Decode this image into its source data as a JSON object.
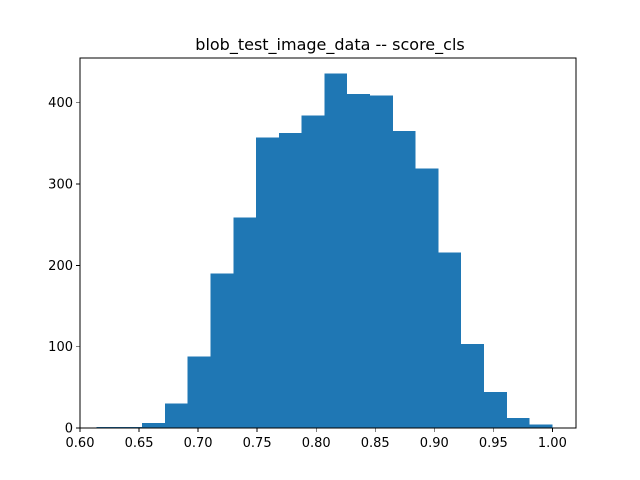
{
  "chart_data": {
    "type": "bar",
    "title": "blob_test_image_data -- score_cls",
    "xlabel": "",
    "ylabel": "",
    "xlim": [
      0.6,
      1.02
    ],
    "ylim": [
      0,
      455
    ],
    "grid": false,
    "bar_color": "#1f77b4",
    "bin_edges": [
      0.614,
      0.6333,
      0.6526,
      0.6719,
      0.6912,
      0.7105,
      0.7298,
      0.7491,
      0.7684,
      0.7877,
      0.807,
      0.8263,
      0.8456,
      0.8649,
      0.8842,
      0.9035,
      0.9228,
      0.9421,
      0.9614,
      0.9807,
      1.0
    ],
    "counts": [
      1,
      1,
      6,
      30,
      88,
      190,
      259,
      357,
      363,
      384,
      436,
      411,
      409,
      365,
      319,
      216,
      103,
      44,
      12,
      4
    ],
    "x_ticks": [
      {
        "value": 0.6,
        "label": "0.60"
      },
      {
        "value": 0.65,
        "label": "0.65"
      },
      {
        "value": 0.7,
        "label": "0.70"
      },
      {
        "value": 0.75,
        "label": "0.75"
      },
      {
        "value": 0.8,
        "label": "0.80"
      },
      {
        "value": 0.85,
        "label": "0.85"
      },
      {
        "value": 0.9,
        "label": "0.90"
      },
      {
        "value": 0.95,
        "label": "0.95"
      },
      {
        "value": 1.0,
        "label": "1.00"
      }
    ],
    "y_ticks": [
      {
        "value": 0,
        "label": "0"
      },
      {
        "value": 100,
        "label": "100"
      },
      {
        "value": 200,
        "label": "200"
      },
      {
        "value": 300,
        "label": "300"
      },
      {
        "value": 400,
        "label": "400"
      }
    ]
  }
}
